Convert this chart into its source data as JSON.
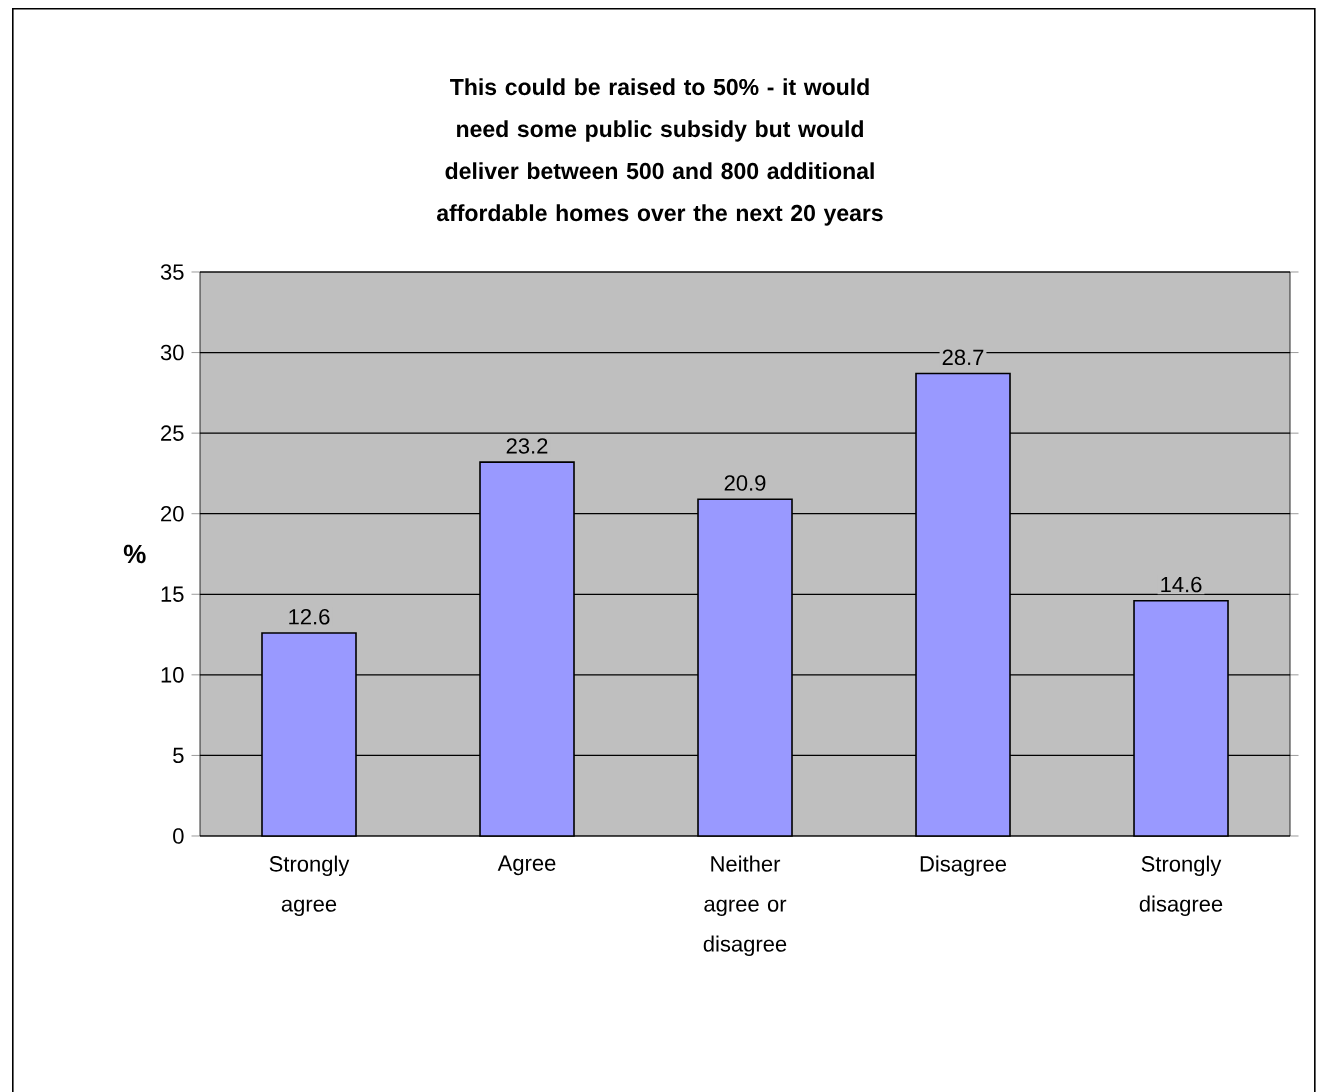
{
  "chart_data": {
    "type": "bar",
    "title": "This could be raised to 50% - it would need some public subsidy but would deliver between 500 and 800 additional affordable homes over the next 20 years",
    "ylabel": "%",
    "categories": [
      "Strongly agree",
      "Agree",
      "Neither agree or disagree",
      "Disagree",
      "Strongly disagree"
    ],
    "values": [
      12.6,
      23.2,
      20.9,
      28.7,
      14.6
    ],
    "color": "#9999ff",
    "ylim": [
      0,
      35
    ],
    "yticks": [
      0,
      5,
      10,
      15,
      20,
      25,
      30,
      35
    ],
    "grid": "y",
    "data_labels": true
  }
}
